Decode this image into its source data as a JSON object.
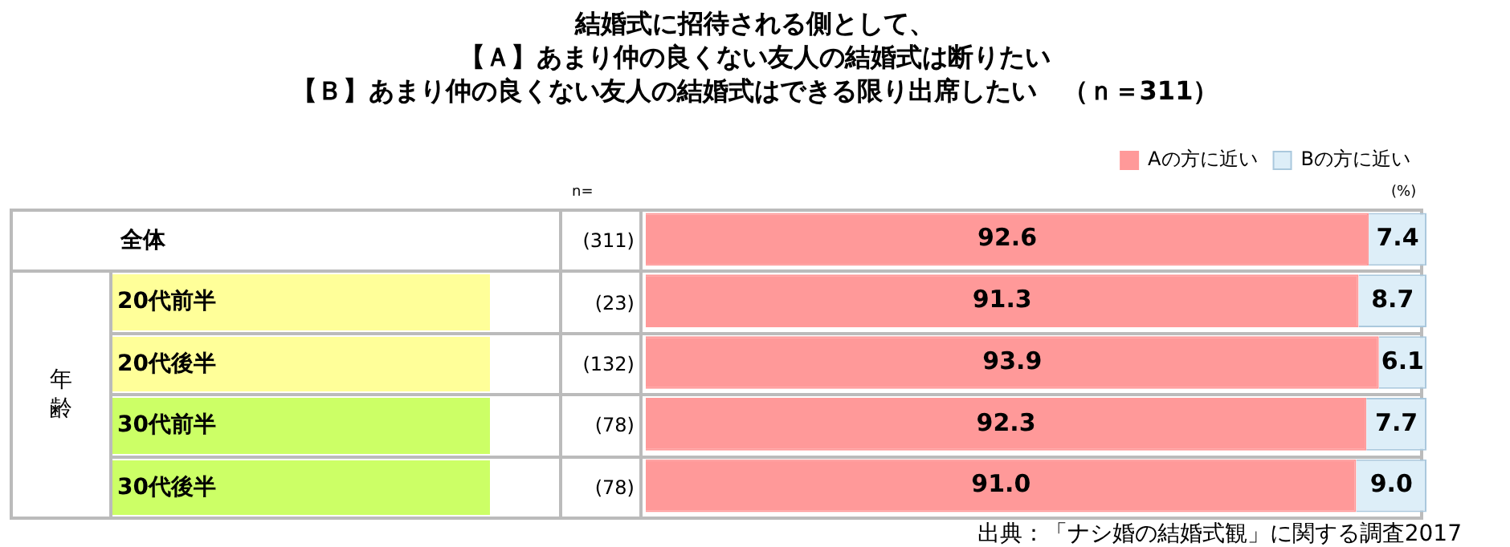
{
  "chart_data": {
    "type": "bar",
    "orientation": "horizontal",
    "stacked": true,
    "tick_labels": false,
    "grid": false,
    "legend": "top right",
    "title": "結婚式に招待される側として、【Ａ】あまり仲の良くない友人の結婚式は断りたい【Ｂ】あまり仲の良くない友人の結婚式はできる限り出席したい　（ｎ＝311）",
    "categories": [
      "全体",
      "20代前半",
      "20代後半",
      "30代前半",
      "30代後半"
    ],
    "series": [
      {
        "name": "Aの方に近い",
        "color": "#ff9999",
        "values": [
          92.6,
          91.3,
          93.9,
          92.3,
          91.0
        ],
        "value_labels": [
          "92.6",
          "91.3",
          "93.9",
          "92.3",
          "91.0"
        ]
      },
      {
        "name": "Bの方に近い",
        "color": "#ddeef8",
        "values": [
          7.4,
          8.7,
          6.1,
          7.7,
          9.0
        ],
        "value_labels": [
          "7.4",
          "8.7",
          "6.1",
          "7.7",
          "9.0"
        ]
      }
    ],
    "annotations": [
      "(311)",
      "(23)",
      "(132)",
      "(78)",
      "(78)",
      "n=",
      "年齢",
      "(%)",
      "出典：「ナシ婚の結婚式観」に関する調査2017"
    ]
  }
}
